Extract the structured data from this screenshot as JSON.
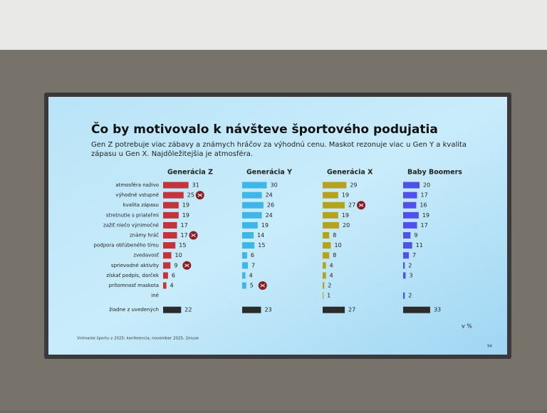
{
  "chart_data": {
    "type": "bar",
    "title": "Čo by motivovalo k návšteve športového podujatia",
    "subtitle_lines": [
      "Gen Z potrebuje viac zábavy a známych hráčov za výhodnú cenu. Maskot rezonuje viac u Gen Y a kvalita",
      "zápasu u Gen X. Najdôležitejšia je atmosféra."
    ],
    "categories": [
      "atmosféra naživo",
      "výhodné vstupné",
      "kvalita zápasu",
      "stretnutie s priateľmi",
      "zažiť niečo výnimočné",
      "známy hráč",
      "podpora obľúbeného tímu",
      "zvedavosť",
      "sprievodné aktivity",
      "získať podpis, darček",
      "prítomnosť maskota",
      "iné",
      "žiadne z uvedených"
    ],
    "series": [
      {
        "name": "Generácia Z",
        "color": "#c3343b",
        "values": [
          31,
          25,
          19,
          19,
          17,
          17,
          15,
          10,
          9,
          6,
          4,
          null,
          22
        ],
        "highlight": [
          1,
          5,
          8
        ]
      },
      {
        "name": "Generácia Y",
        "color": "#3db7ea",
        "values": [
          30,
          24,
          26,
          24,
          19,
          14,
          15,
          6,
          7,
          4,
          5,
          null,
          23
        ],
        "highlight": [
          10
        ]
      },
      {
        "name": "Generácia X",
        "color": "#b6a21d",
        "values": [
          29,
          19,
          27,
          19,
          20,
          8,
          10,
          8,
          4,
          4,
          2,
          1,
          27
        ],
        "highlight": [
          2
        ]
      },
      {
        "name": "Baby Boomers",
        "color": "#5150ea",
        "values": [
          20,
          17,
          16,
          19,
          17,
          9,
          11,
          7,
          2,
          3,
          null,
          2,
          33
        ],
        "highlight": []
      }
    ],
    "last_category_color": "#2b2b2b",
    "unit_note": "v %",
    "source": "Vnímanie športu v 2025; konferencia, november 2025, 2muse",
    "page_number": "94"
  }
}
